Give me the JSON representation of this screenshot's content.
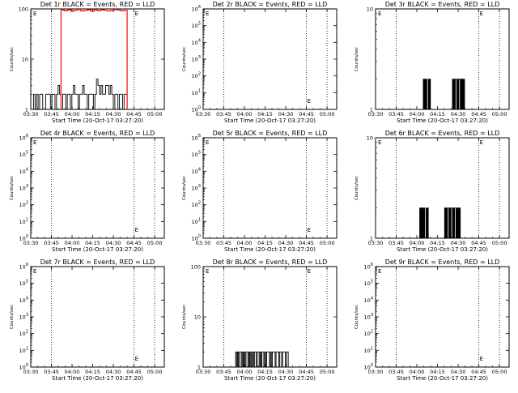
{
  "colors": {
    "background": "#ffffff",
    "events": "#000000",
    "lld": "#ff0000"
  },
  "xaxis": {
    "label": "Start Time (20-Oct-17 03:27:20)",
    "ticks": [
      "03:30",
      "03:45",
      "04:00",
      "04:15",
      "04:30",
      "04:45",
      "05:00"
    ],
    "markers": [
      "03:45",
      "04:45",
      "05:00"
    ]
  },
  "ylabel": "Counts/sec",
  "chart_data": [
    {
      "type": "line",
      "title": "Det 1r BLACK = Events, RED = LLD",
      "ylabel": "Counts/sec",
      "xlabel": "Start Time (20-Oct-17 03:27:20)",
      "yscale": "log",
      "ylim": [
        1,
        100
      ],
      "yticks": [
        {
          "base": "1"
        },
        {
          "base": "10"
        },
        {
          "base": "100"
        }
      ],
      "marker_glyph": "E",
      "series": [
        {
          "name": "Events",
          "color": "#000000",
          "values": [
            2,
            1,
            2,
            1,
            2,
            2,
            1,
            1,
            2,
            2,
            2,
            1,
            2,
            2,
            1,
            2,
            3,
            2,
            1,
            2,
            2,
            1,
            2,
            2,
            1,
            2,
            3,
            2,
            2,
            1,
            2,
            2,
            3,
            2,
            2,
            1,
            2,
            2,
            2,
            1,
            2,
            4,
            3,
            2,
            3,
            2,
            2,
            3,
            3,
            2,
            3,
            2,
            1,
            2,
            2,
            1,
            2,
            2,
            1,
            2,
            2
          ]
        },
        {
          "name": "LLD",
          "color": "#ff0000",
          "values": [
            95,
            92,
            96,
            90,
            94,
            97,
            91,
            93,
            96,
            90,
            95,
            92,
            96,
            94,
            91,
            93,
            97,
            95,
            92,
            94
          ]
        }
      ]
    },
    {
      "type": "line",
      "title": "Det 2r BLACK = Events, RED = LLD",
      "ylabel": "Counts/sec",
      "xlabel": "Start Time (20-Oct-17 03:27:20)",
      "yscale": "log",
      "ylim": [
        1,
        1000000
      ],
      "yticks": [
        {
          "base": "10",
          "exp": "0"
        },
        {
          "base": "10",
          "exp": "1"
        },
        {
          "base": "10",
          "exp": "2"
        },
        {
          "base": "10",
          "exp": "3"
        },
        {
          "base": "10",
          "exp": "4"
        },
        {
          "base": "10",
          "exp": "5"
        },
        {
          "base": "10",
          "exp": "6"
        }
      ],
      "marker_glyph": "E",
      "series": []
    },
    {
      "type": "line",
      "title": "Det 3r BLACK = Events, RED = LLD",
      "ylabel": "Counts/sec",
      "xlabel": "Start Time (20-Oct-17 03:27:20)",
      "yscale": "log",
      "ylim": [
        1,
        10
      ],
      "yticks": [
        {
          "base": "1"
        },
        {
          "base": "10"
        }
      ],
      "marker_glyph": "E",
      "series": [
        {
          "name": "Events",
          "color": "#000000",
          "values": [
            1,
            1,
            1,
            1,
            1,
            1,
            1,
            1,
            1,
            1,
            1,
            1,
            1,
            1,
            1,
            1,
            1,
            1,
            1,
            1,
            1,
            1,
            1,
            1,
            1,
            1,
            1,
            1,
            1,
            1,
            1,
            1,
            1,
            1,
            1,
            1,
            1,
            1,
            1,
            1,
            2,
            1,
            2,
            1,
            2,
            1,
            1,
            2,
            1,
            2,
            1,
            1,
            1,
            1,
            1,
            1,
            1,
            1,
            1,
            1,
            1,
            1,
            1,
            1,
            1,
            1,
            1,
            1,
            1,
            1,
            1,
            1,
            1,
            1,
            1,
            1,
            1,
            1,
            1,
            1,
            1,
            2,
            1,
            2,
            1,
            2,
            2,
            1,
            2,
            1,
            2,
            2,
            1,
            2,
            1,
            2,
            1,
            2,
            1,
            1,
            1,
            1,
            1,
            1,
            1,
            1,
            1,
            1,
            1,
            1,
            1,
            1,
            1,
            1,
            1,
            1,
            1,
            1,
            1,
            1
          ]
        }
      ]
    },
    {
      "type": "line",
      "title": "Det 4r BLACK = Events, RED = LLD",
      "ylabel": "Counts/sec",
      "xlabel": "Start Time (20-Oct-17 03:27:20)",
      "yscale": "log",
      "ylim": [
        1,
        1000000
      ],
      "yticks": [
        {
          "base": "10",
          "exp": "0"
        },
        {
          "base": "10",
          "exp": "1"
        },
        {
          "base": "10",
          "exp": "2"
        },
        {
          "base": "10",
          "exp": "3"
        },
        {
          "base": "10",
          "exp": "4"
        },
        {
          "base": "10",
          "exp": "5"
        },
        {
          "base": "10",
          "exp": "6"
        }
      ],
      "marker_glyph": "E",
      "series": []
    },
    {
      "type": "line",
      "title": "Det 5r BLACK = Events, RED = LLD",
      "ylabel": "Counts/sec",
      "xlabel": "Start Time (20-Oct-17 03:27:20)",
      "yscale": "log",
      "ylim": [
        1,
        1000000
      ],
      "yticks": [
        {
          "base": "10",
          "exp": "0"
        },
        {
          "base": "10",
          "exp": "1"
        },
        {
          "base": "10",
          "exp": "2"
        },
        {
          "base": "10",
          "exp": "3"
        },
        {
          "base": "10",
          "exp": "4"
        },
        {
          "base": "10",
          "exp": "5"
        },
        {
          "base": "10",
          "exp": "6"
        }
      ],
      "marker_glyph": "E",
      "series": []
    },
    {
      "type": "line",
      "title": "Det 6r BLACK = Events, RED = LLD",
      "ylabel": "Counts/sec",
      "xlabel": "Start Time (20-Oct-17 03:27:20)",
      "yscale": "log",
      "ylim": [
        1,
        10
      ],
      "yticks": [
        {
          "base": "1"
        },
        {
          "base": "10"
        }
      ],
      "marker_glyph": "E",
      "series": [
        {
          "name": "Events",
          "color": "#000000",
          "values": [
            1,
            1,
            1,
            1,
            1,
            1,
            1,
            1,
            1,
            1,
            1,
            1,
            1,
            1,
            1,
            1,
            1,
            1,
            1,
            1,
            1,
            1,
            1,
            1,
            1,
            1,
            1,
            1,
            1,
            1,
            1,
            1,
            1,
            1,
            1,
            2,
            1,
            2,
            1,
            2,
            1,
            2,
            1,
            1,
            2,
            1,
            2,
            1,
            1,
            1,
            1,
            1,
            1,
            1,
            1,
            1,
            1,
            1,
            1,
            1,
            1,
            1,
            1,
            1,
            1,
            1,
            1,
            1,
            1,
            1,
            2,
            1,
            2,
            1,
            2,
            2,
            1,
            2,
            1,
            2,
            2,
            1,
            2,
            1,
            2,
            2,
            1,
            2,
            1,
            2,
            1,
            2,
            1,
            1,
            1,
            1,
            1,
            1,
            1,
            1,
            1,
            1,
            1,
            1,
            1,
            1,
            1,
            1,
            1,
            1,
            1,
            1,
            1,
            1,
            1,
            1,
            1,
            1,
            1,
            1
          ]
        }
      ]
    },
    {
      "type": "line",
      "title": "Det 7r BLACK = Events, RED = LLD",
      "ylabel": "Counts/sec",
      "xlabel": "Start Time (20-Oct-17 03:27:20)",
      "yscale": "log",
      "ylim": [
        1,
        1000000
      ],
      "yticks": [
        {
          "base": "10",
          "exp": "0"
        },
        {
          "base": "10",
          "exp": "1"
        },
        {
          "base": "10",
          "exp": "2"
        },
        {
          "base": "10",
          "exp": "3"
        },
        {
          "base": "10",
          "exp": "4"
        },
        {
          "base": "10",
          "exp": "5"
        },
        {
          "base": "10",
          "exp": "6"
        }
      ],
      "marker_glyph": "E",
      "series": []
    },
    {
      "type": "line",
      "title": "Det 8r BLACK = Events, RED = LLD",
      "ylabel": "Counts/sec",
      "xlabel": "Start Time (20-Oct-17 03:27:20)",
      "yscale": "log",
      "ylim": [
        1,
        100
      ],
      "yticks": [
        {
          "base": "1"
        },
        {
          "base": "10"
        },
        {
          "base": "100"
        }
      ],
      "marker_glyph": "E",
      "series": [
        {
          "name": "Events",
          "color": "#000000",
          "values": [
            1,
            1,
            1,
            1,
            1,
            1,
            1,
            1,
            1,
            1,
            1,
            1,
            1,
            1,
            1,
            1,
            1,
            2,
            1,
            2,
            1,
            2,
            2,
            1,
            2,
            1,
            2,
            1,
            2,
            2,
            1,
            2,
            1,
            2,
            1,
            2,
            1,
            2,
            2,
            1,
            2,
            2,
            1,
            2,
            1,
            2,
            2,
            1,
            2,
            1,
            2,
            2,
            2,
            1,
            2,
            1,
            2,
            2,
            2,
            1,
            2,
            2,
            2,
            1,
            2,
            2,
            1,
            2,
            2,
            2,
            1,
            2,
            2,
            1,
            1,
            1,
            1,
            1,
            1,
            1,
            1,
            1,
            1,
            1,
            1
          ]
        }
      ]
    },
    {
      "type": "line",
      "title": "Det 9r BLACK = Events, RED = LLD",
      "ylabel": "Counts/sec",
      "xlabel": "Start Time (20-Oct-17 03:27:20)",
      "yscale": "log",
      "ylim": [
        1,
        1000000
      ],
      "yticks": [
        {
          "base": "10",
          "exp": "0"
        },
        {
          "base": "10",
          "exp": "1"
        },
        {
          "base": "10",
          "exp": "2"
        },
        {
          "base": "10",
          "exp": "3"
        },
        {
          "base": "10",
          "exp": "4"
        },
        {
          "base": "10",
          "exp": "5"
        },
        {
          "base": "10",
          "exp": "6"
        }
      ],
      "marker_glyph": "E",
      "series": []
    }
  ]
}
